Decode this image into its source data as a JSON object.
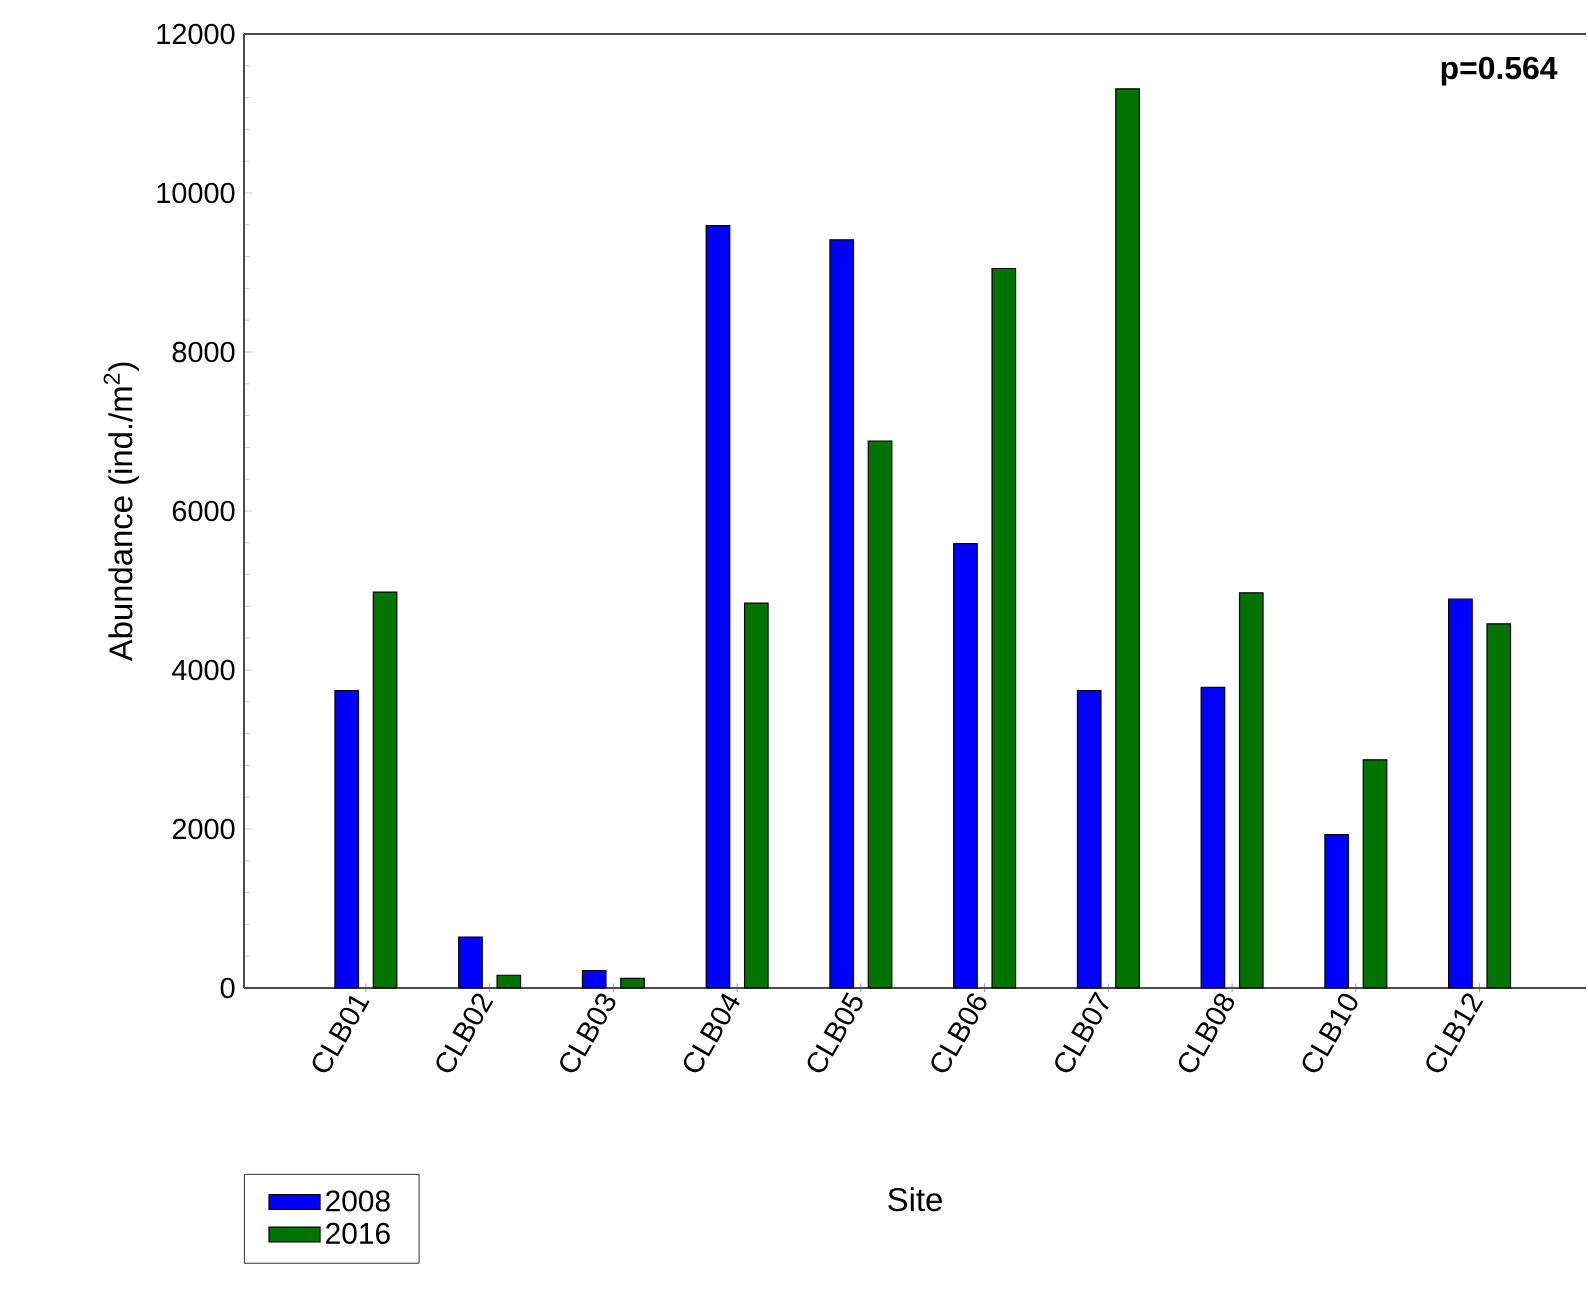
{
  "chart_data": {
    "type": "bar",
    "xlabel": "Site",
    "ylabel": "Abundance (ind./m$^{2}$)",
    "categories": [
      "CLB01",
      "CLB02",
      "CLB03",
      "CLB04",
      "CLB05",
      "CLB06",
      "CLB07",
      "CLB08",
      "CLB10",
      "CLB12"
    ],
    "series": [
      {
        "name": "2008",
        "color": "#0000ff",
        "values": [
          3740,
          640,
          220,
          9590,
          9410,
          5590,
          3740,
          3780,
          1930,
          4890
        ]
      },
      {
        "name": "2016",
        "color": "#007400",
        "values": [
          4980,
          160,
          120,
          4840,
          6880,
          9050,
          11310,
          4970,
          2870,
          4580
        ]
      }
    ],
    "ylim": [
      0,
      12000
    ],
    "yticks": [
      0,
      2000,
      4000,
      6000,
      8000,
      10000,
      12000
    ],
    "annotations": [
      "p=0.564"
    ],
    "legend": "bottom left",
    "grid": false
  }
}
